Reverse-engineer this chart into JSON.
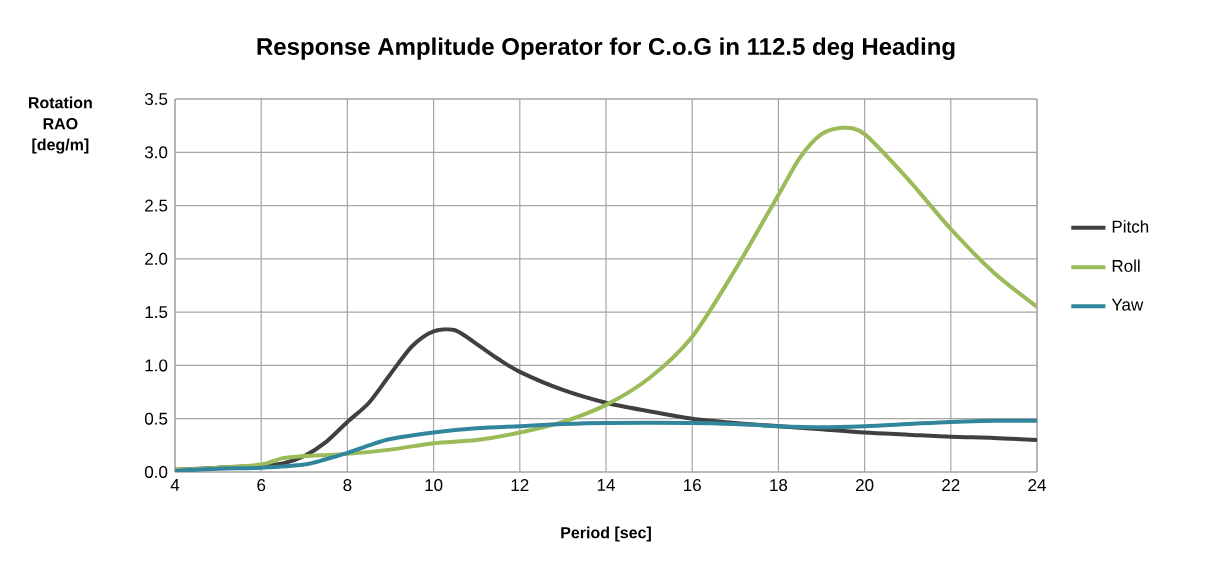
{
  "chart_data": {
    "type": "line",
    "title": "Response Amplitude Operator for C.o.G in 112.5 deg Heading",
    "xlabel": "Period [sec]",
    "ylabel": "Rotation RAO [deg/m]",
    "xlim": [
      4,
      24
    ],
    "xticks": [
      4,
      6,
      8,
      10,
      12,
      14,
      16,
      18,
      20,
      22,
      24
    ],
    "ylim": [
      0,
      3.5
    ],
    "yticks": [
      {
        "value": 0,
        "label": "0.0"
      },
      {
        "value": 0.5,
        "label": "0.5"
      },
      {
        "value": 1,
        "label": "1.0"
      },
      {
        "value": 1.5,
        "label": "1.5"
      },
      {
        "value": 2,
        "label": "2.0"
      },
      {
        "value": 2.5,
        "label": "2.5"
      },
      {
        "value": 3,
        "label": "3.0"
      },
      {
        "value": 3.5,
        "label": "3.5"
      }
    ],
    "grid": true,
    "legend": "right",
    "series": [
      {
        "name": "Pitch",
        "color": "#404040",
        "x": [
          4,
          5,
          6,
          6.5,
          7,
          7.5,
          8,
          8.5,
          9,
          9.5,
          10,
          10.5,
          11,
          11.5,
          12,
          13,
          14,
          15,
          16,
          17,
          18,
          19,
          20,
          21,
          22,
          23,
          24
        ],
        "values": [
          0.02,
          0.04,
          0.06,
          0.08,
          0.15,
          0.28,
          0.47,
          0.65,
          0.92,
          1.18,
          1.32,
          1.33,
          1.2,
          1.06,
          0.94,
          0.77,
          0.65,
          0.57,
          0.5,
          0.46,
          0.43,
          0.4,
          0.37,
          0.35,
          0.33,
          0.32,
          0.3
        ]
      },
      {
        "name": "Roll",
        "color": "#9bbb59",
        "x": [
          4,
          5,
          6,
          6.5,
          7,
          8,
          9,
          10,
          11,
          12,
          13,
          14,
          15,
          16,
          17,
          18,
          18.5,
          19,
          19.5,
          20,
          21,
          22,
          23,
          24
        ],
        "values": [
          0.02,
          0.04,
          0.07,
          0.13,
          0.15,
          0.17,
          0.21,
          0.27,
          0.3,
          0.37,
          0.47,
          0.63,
          0.88,
          1.27,
          1.9,
          2.6,
          2.95,
          3.17,
          3.23,
          3.17,
          2.75,
          2.28,
          1.87,
          1.55
        ]
      },
      {
        "name": "Yaw",
        "color": "#31859c",
        "x": [
          4,
          5,
          6,
          7,
          7.5,
          8,
          8.5,
          9,
          10,
          11,
          12,
          13,
          14,
          16,
          17,
          18,
          19,
          20,
          21,
          22,
          23,
          24
        ],
        "values": [
          0.01,
          0.03,
          0.04,
          0.07,
          0.12,
          0.18,
          0.25,
          0.31,
          0.37,
          0.41,
          0.43,
          0.45,
          0.46,
          0.46,
          0.45,
          0.43,
          0.42,
          0.43,
          0.45,
          0.47,
          0.48,
          0.48
        ]
      }
    ]
  }
}
